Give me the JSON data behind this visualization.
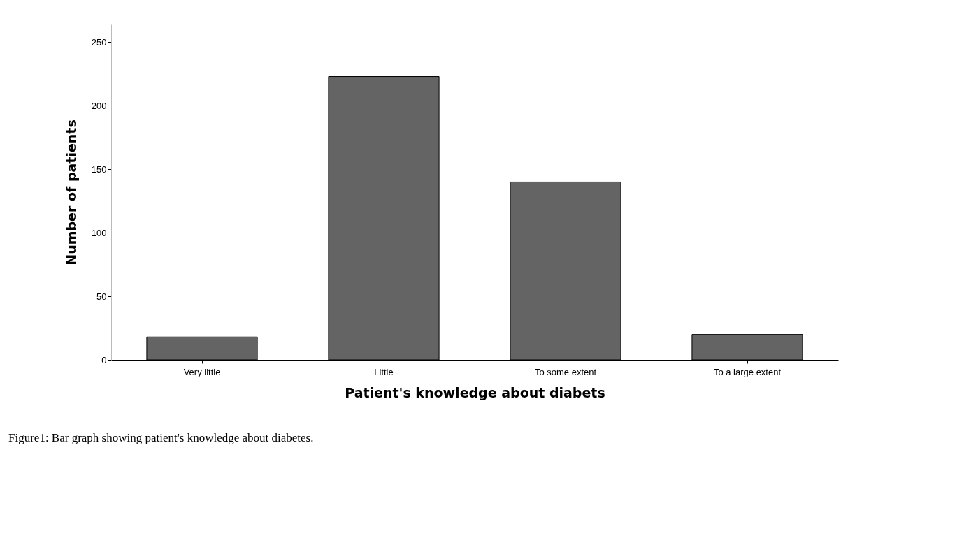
{
  "chart_data": {
    "type": "bar",
    "xlabel": "Patient's knowledge about diabets",
    "ylabel": "Number of patients",
    "categories": [
      "Very little",
      "Little",
      "To some extent",
      "To a large extent"
    ],
    "values": [
      18,
      223,
      140,
      20
    ],
    "color": "#646464",
    "ylim": [
      0,
      264
    ],
    "yticks": [
      0,
      50,
      100,
      150,
      200,
      250
    ],
    "grid": false,
    "annotations": [
      "Figure1: Bar graph showing patient's knowledge about diabetes."
    ]
  }
}
